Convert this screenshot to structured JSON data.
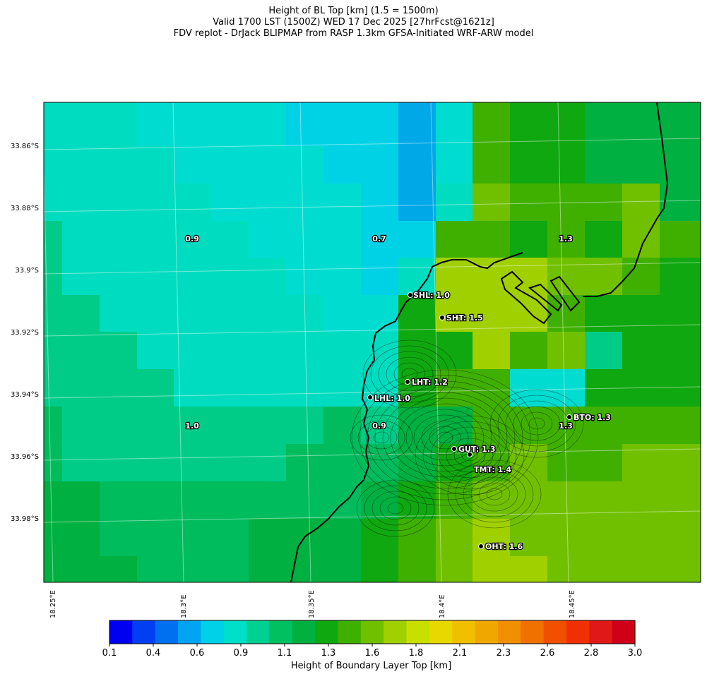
{
  "title_lines": [
    "Height of BL Top [km] (1.5 = 1500m)",
    "Valid 1700 LST (1500Z) WED 17 Dec 2025 [27hrFcst@1621z]",
    "FDV replot - DrJack BLIPMAP from RASP 1.3km GFSA-Initiated WRF-ARW model"
  ],
  "lat_labels": [
    "33.86°S",
    "33.88°S",
    "33.9°S",
    "33.92°S",
    "33.94°S",
    "33.96°S",
    "33.98°S"
  ],
  "lon_labels": [
    "18.25°E",
    "18.3°E",
    "18.35°E",
    "18.4°E",
    "18.45°E"
  ],
  "grid_labels": [
    {
      "text": "0.9"
    },
    {
      "text": "0.7"
    },
    {
      "text": "1.3"
    },
    {
      "text": "1.0"
    },
    {
      "text": "0.9"
    },
    {
      "text": "1.3"
    }
  ],
  "stations": [
    {
      "name": "SHL: 1.0"
    },
    {
      "name": "SHT: 1.5"
    },
    {
      "name": "LHT: 1.2"
    },
    {
      "name": "LHL: 1.0"
    },
    {
      "name": "BTO: 1.3"
    },
    {
      "name": "GUT: 1.3"
    },
    {
      "name": "TMT: 1.4"
    },
    {
      "name": "OHT: 1.6"
    }
  ],
  "colorbar": {
    "label": "Height of Boundary Layer Top [km]",
    "ticks": [
      "0.1",
      "0.4",
      "0.6",
      "0.9",
      "1.1",
      "1.3",
      "1.6",
      "1.8",
      "2.1",
      "2.3",
      "2.6",
      "2.8",
      "3.0"
    ],
    "colors": [
      "#0000f0",
      "#0040f0",
      "#0070f0",
      "#00a4f0",
      "#00d0e8",
      "#00e0c8",
      "#00d090",
      "#00c060",
      "#00b040",
      "#10a810",
      "#40b000",
      "#70c000",
      "#a0d000",
      "#c8e000",
      "#e8d800",
      "#f0c000",
      "#f0a800",
      "#f09000",
      "#f07000",
      "#f05000",
      "#f03000",
      "#e01818",
      "#d00018"
    ]
  },
  "map_colors": {
    "c07": "#00d2e6",
    "c08": "#00dcd0",
    "c09": "#00dcc0",
    "c10": "#00cc88",
    "c11": "#00bc5c",
    "c12": "#00b040",
    "c13": "#10a810",
    "c14": "#40b000",
    "c15": "#70c000",
    "c16": "#a0d000",
    "c06": "#00a8e8"
  }
}
